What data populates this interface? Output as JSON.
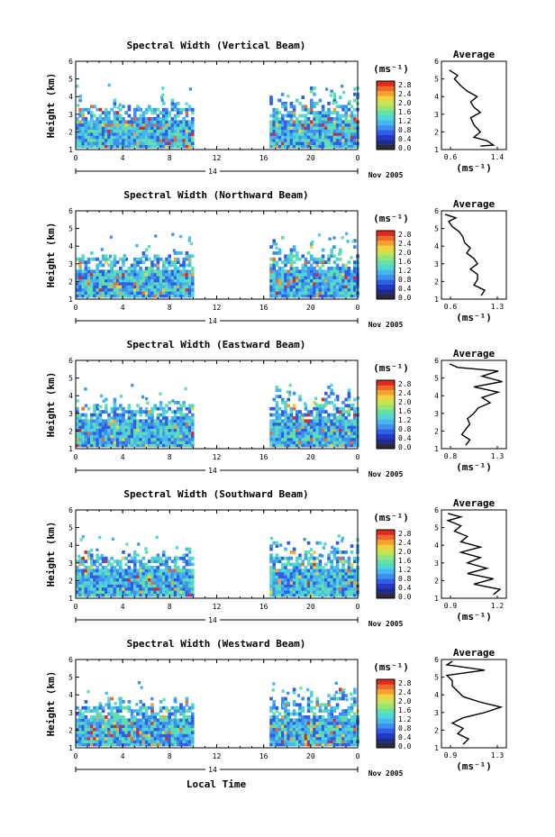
{
  "chart_data": [
    {
      "type": "heatmap",
      "title": "Spectral Width (Vertical Beam)",
      "ylabel": "Height (km)",
      "colorbar_label": "(ms⁻¹)",
      "colorbar_ticks": [
        "2.8",
        "2.4",
        "2.0",
        "1.6",
        "1.2",
        "0.8",
        "0.4",
        "0.0"
      ],
      "y_ticks": [
        "1",
        "2",
        "3",
        "4",
        "5",
        "6"
      ],
      "x_ticks": [
        "0",
        "4",
        "8",
        "12",
        "16",
        "20",
        "0"
      ],
      "day_label": "14",
      "date_label": "Nov 2005",
      "average": {
        "title": "Average",
        "x_ticks": [
          "0.6",
          "1.4"
        ],
        "xlabel": "(ms⁻¹)",
        "y_ticks": [
          "1",
          "2",
          "3",
          "4",
          "5",
          "6"
        ],
        "xlim": [
          0.5,
          1.5
        ],
        "profile": [
          [
            1.1,
            1.2
          ],
          [
            1.3,
            1.25
          ],
          [
            1.2,
            1.5
          ],
          [
            1.0,
            1.7
          ],
          [
            1.1,
            2.0
          ],
          [
            1.0,
            2.4
          ],
          [
            0.95,
            2.8
          ],
          [
            1.1,
            3.1
          ],
          [
            1.0,
            3.4
          ],
          [
            0.95,
            3.7
          ],
          [
            1.05,
            4.0
          ],
          [
            0.9,
            4.3
          ],
          [
            0.8,
            4.6
          ],
          [
            0.75,
            4.8
          ],
          [
            0.7,
            5.0
          ],
          [
            0.75,
            5.2
          ],
          [
            0.62,
            5.5
          ]
        ]
      }
    },
    {
      "type": "heatmap",
      "title": "Spectral Width (Northward Beam)",
      "ylabel": "Height (km)",
      "colorbar_label": "(ms⁻¹)",
      "colorbar_ticks": [
        "2.8",
        "2.4",
        "2.0",
        "1.6",
        "1.2",
        "0.8",
        "0.4",
        "0.0"
      ],
      "y_ticks": [
        "1",
        "2",
        "3",
        "4",
        "5",
        "6"
      ],
      "x_ticks": [
        "0",
        "4",
        "8",
        "12",
        "16",
        "20",
        "0"
      ],
      "day_label": "14",
      "date_label": "Nov 2005",
      "average": {
        "title": "Average",
        "x_ticks": [
          "0.6",
          "1.3"
        ],
        "xlabel": "(ms⁻¹)",
        "y_ticks": [
          "1",
          "2",
          "3",
          "4",
          "5",
          "6"
        ],
        "xlim": [
          0.5,
          1.4
        ],
        "profile": [
          [
            1.05,
            1.2
          ],
          [
            1.1,
            1.5
          ],
          [
            0.95,
            1.8
          ],
          [
            1.0,
            2.1
          ],
          [
            1.0,
            2.4
          ],
          [
            0.9,
            2.7
          ],
          [
            1.0,
            3.0
          ],
          [
            0.95,
            3.3
          ],
          [
            0.85,
            3.6
          ],
          [
            0.9,
            3.9
          ],
          [
            0.82,
            4.2
          ],
          [
            0.8,
            4.5
          ],
          [
            0.75,
            4.8
          ],
          [
            0.65,
            5.1
          ],
          [
            0.6,
            5.4
          ],
          [
            0.7,
            5.6
          ],
          [
            0.55,
            5.8
          ]
        ]
      }
    },
    {
      "type": "heatmap",
      "title": "Spectral Width (Eastward Beam)",
      "ylabel": "Height (km)",
      "colorbar_label": "(ms⁻¹)",
      "colorbar_ticks": [
        "2.8",
        "2.4",
        "2.0",
        "1.6",
        "1.2",
        "0.8",
        "0.4",
        "0.0"
      ],
      "y_ticks": [
        "1",
        "2",
        "3",
        "4",
        "5",
        "6"
      ],
      "x_ticks": [
        "0",
        "4",
        "8",
        "12",
        "16",
        "20",
        "0"
      ],
      "day_label": "14",
      "date_label": "Nov 2005",
      "average": {
        "title": "Average",
        "x_ticks": [
          "0.8",
          "1.3"
        ],
        "xlabel": "(ms⁻¹)",
        "y_ticks": [
          "1",
          "2",
          "3",
          "4",
          "5",
          "6"
        ],
        "xlim": [
          0.6,
          1.4
        ],
        "profile": [
          [
            0.9,
            1.2
          ],
          [
            0.95,
            1.5
          ],
          [
            0.85,
            1.8
          ],
          [
            0.9,
            2.1
          ],
          [
            0.95,
            2.4
          ],
          [
            0.92,
            2.7
          ],
          [
            1.0,
            3.0
          ],
          [
            1.05,
            3.3
          ],
          [
            1.2,
            3.6
          ],
          [
            1.1,
            3.9
          ],
          [
            1.3,
            4.2
          ],
          [
            1.0,
            4.5
          ],
          [
            1.35,
            4.8
          ],
          [
            1.1,
            5.1
          ],
          [
            1.3,
            5.4
          ],
          [
            0.8,
            5.6
          ],
          [
            0.7,
            5.8
          ]
        ]
      }
    },
    {
      "type": "heatmap",
      "title": "Spectral Width (Southward Beam)",
      "ylabel": "Height (km)",
      "colorbar_label": "(ms⁻¹)",
      "colorbar_ticks": [
        "2.8",
        "2.4",
        "2.0",
        "1.6",
        "1.2",
        "0.8",
        "0.4",
        "0.0"
      ],
      "y_ticks": [
        "1",
        "2",
        "3",
        "4",
        "5",
        "6"
      ],
      "x_ticks": [
        "0",
        "4",
        "8",
        "12",
        "16",
        "20",
        "0"
      ],
      "day_label": "14",
      "date_label": "Nov 2005",
      "average": {
        "title": "Average",
        "x_ticks": [
          "0.9",
          "1.2"
        ],
        "xlabel": "(ms⁻¹)",
        "y_ticks": [
          "1",
          "2",
          "3",
          "4",
          "5",
          "6"
        ],
        "xlim": [
          0.8,
          1.3
        ],
        "profile": [
          [
            1.2,
            1.2
          ],
          [
            1.25,
            1.5
          ],
          [
            1.05,
            1.8
          ],
          [
            1.2,
            2.1
          ],
          [
            1.0,
            2.4
          ],
          [
            1.15,
            2.7
          ],
          [
            1.0,
            3.0
          ],
          [
            1.1,
            3.3
          ],
          [
            0.95,
            3.6
          ],
          [
            1.1,
            3.9
          ],
          [
            0.95,
            4.2
          ],
          [
            1.0,
            4.5
          ],
          [
            0.9,
            4.8
          ],
          [
            0.95,
            5.1
          ],
          [
            0.85,
            5.4
          ],
          [
            0.95,
            5.6
          ],
          [
            0.85,
            5.8
          ]
        ]
      }
    },
    {
      "type": "heatmap",
      "title": "Spectral Width (Westward Beam)",
      "ylabel": "Height (km)",
      "colorbar_label": "(ms⁻¹)",
      "colorbar_ticks": [
        "2.8",
        "2.4",
        "2.0",
        "1.6",
        "1.2",
        "0.8",
        "0.4",
        "0.0"
      ],
      "y_ticks": [
        "1",
        "2",
        "3",
        "4",
        "5",
        "6"
      ],
      "x_ticks": [
        "0",
        "4",
        "8",
        "12",
        "16",
        "20",
        "0"
      ],
      "day_label": "14",
      "date_label": "Nov 2005",
      "xlabel": "Local Time",
      "average": {
        "title": "Average",
        "x_ticks": [
          "0.9",
          "1.3"
        ],
        "xlabel": "(ms⁻¹)",
        "y_ticks": [
          "1",
          "2",
          "3",
          "4",
          "5",
          "6"
        ],
        "xlim": [
          0.8,
          1.4
        ],
        "profile": [
          [
            1.0,
            1.2
          ],
          [
            1.05,
            1.5
          ],
          [
            0.95,
            1.8
          ],
          [
            1.0,
            2.1
          ],
          [
            0.9,
            2.4
          ],
          [
            1.0,
            2.7
          ],
          [
            1.2,
            3.0
          ],
          [
            1.35,
            3.3
          ],
          [
            1.15,
            3.6
          ],
          [
            1.0,
            3.9
          ],
          [
            0.95,
            4.2
          ],
          [
            0.9,
            4.5
          ],
          [
            0.9,
            4.8
          ],
          [
            0.85,
            5.1
          ],
          [
            1.2,
            5.4
          ],
          [
            0.85,
            5.7
          ],
          [
            0.9,
            5.9
          ]
        ]
      }
    }
  ],
  "colors": {
    "colormap": [
      "#1e2a8c",
      "#2338c4",
      "#2f5ee6",
      "#3f8fef",
      "#47b6ee",
      "#52d5d6",
      "#63e0a6",
      "#96e474",
      "#c8e452",
      "#f0d23e",
      "#f4a232",
      "#ef6a2a",
      "#e02a20"
    ],
    "lowest_band": "#2a2a3a"
  }
}
